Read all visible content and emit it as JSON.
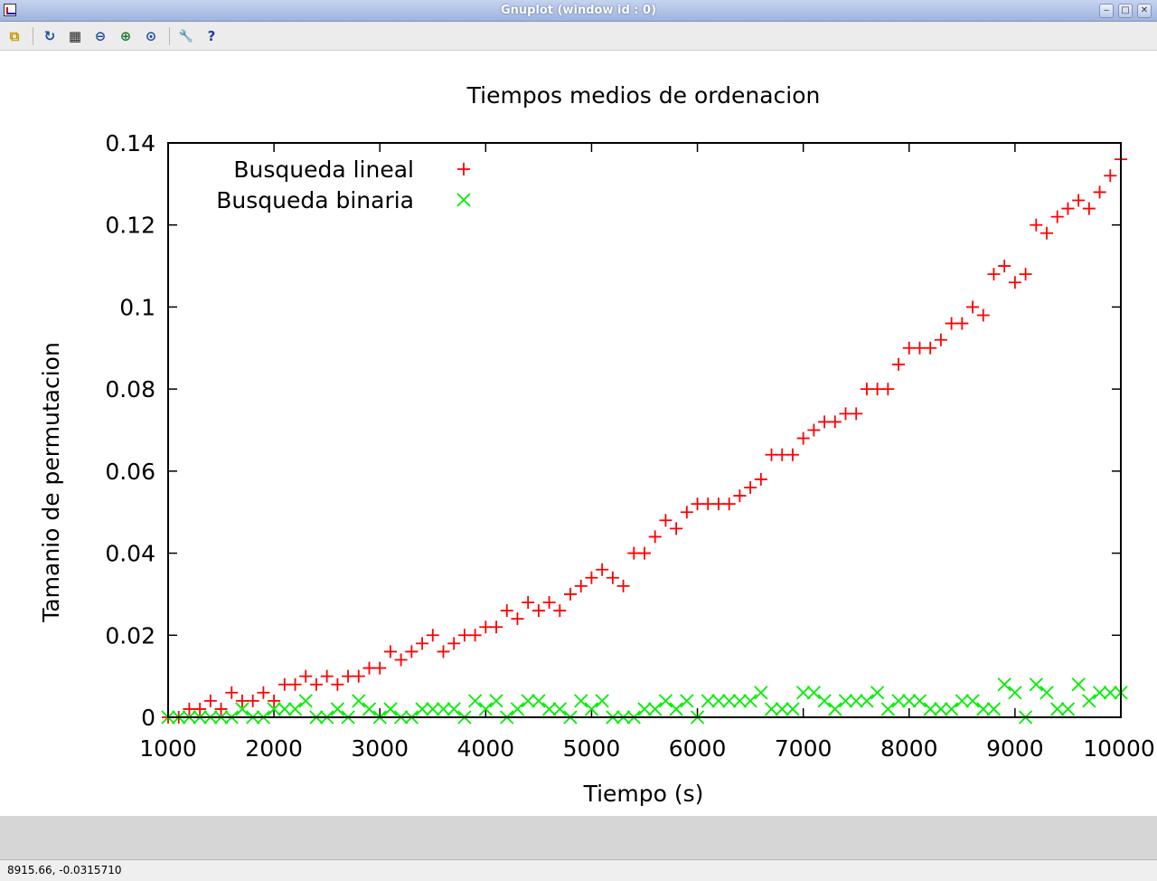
{
  "window": {
    "title": "Gnuplot (window id : 0)",
    "minimize": "‒",
    "maximize": "□",
    "close": "✕"
  },
  "toolbar": [
    {
      "name": "copy-to-clipboard-icon",
      "glyph": "⧉",
      "color": "#c79a00"
    },
    {
      "name": "replot-icon",
      "glyph": "↻",
      "color": "#1a4fa0"
    },
    {
      "name": "grid-icon",
      "glyph": "▦",
      "color": "#222222"
    },
    {
      "name": "zoom-previous-icon",
      "glyph": "⊖",
      "color": "#1a4fa0"
    },
    {
      "name": "zoom-next-icon",
      "glyph": "⊕",
      "color": "#1a7a30"
    },
    {
      "name": "autoscale-icon",
      "glyph": "⊙",
      "color": "#1a4fa0"
    },
    {
      "name": "options-icon",
      "glyph": "🔧",
      "color": "#b08000"
    },
    {
      "name": "help-icon",
      "glyph": "?",
      "color": "#1a3fa0"
    }
  ],
  "status": {
    "text": "8915.66, -0.0315710"
  },
  "chart_data": {
    "type": "scatter",
    "title": "Tiempos medios de ordenacion",
    "xlabel": "Tiempo (s)",
    "ylabel": "Tamanio de permutacion",
    "xlim": [
      1000,
      10000
    ],
    "ylim": [
      0,
      0.14
    ],
    "xticks": [
      1000,
      2000,
      3000,
      4000,
      5000,
      6000,
      7000,
      8000,
      9000,
      10000
    ],
    "xtick_labels": [
      "1000",
      "2000",
      "3000",
      "4000",
      "5000",
      "6000",
      "7000",
      "8000",
      "9000",
      "10000"
    ],
    "yticks": [
      0,
      0.02,
      0.04,
      0.06,
      0.08,
      0.1,
      0.12,
      0.14
    ],
    "ytick_labels": [
      "0",
      "0.02",
      "0.04",
      "0.06",
      "0.08",
      "0.1",
      "0.12",
      "0.14"
    ],
    "grid": false,
    "legend": "top-left",
    "x": [
      1000,
      1100,
      1200,
      1300,
      1400,
      1500,
      1600,
      1700,
      1800,
      1900,
      2000,
      2100,
      2200,
      2300,
      2400,
      2500,
      2600,
      2700,
      2800,
      2900,
      3000,
      3100,
      3200,
      3300,
      3400,
      3500,
      3600,
      3700,
      3800,
      3900,
      4000,
      4100,
      4200,
      4300,
      4400,
      4500,
      4600,
      4700,
      4800,
      4900,
      5000,
      5100,
      5200,
      5300,
      5400,
      5500,
      5600,
      5700,
      5800,
      5900,
      6000,
      6100,
      6200,
      6300,
      6400,
      6500,
      6600,
      6700,
      6800,
      6900,
      7000,
      7100,
      7200,
      7300,
      7400,
      7500,
      7600,
      7700,
      7800,
      7900,
      8000,
      8100,
      8200,
      8300,
      8400,
      8500,
      8600,
      8700,
      8800,
      8900,
      9000,
      9100,
      9200,
      9300,
      9400,
      9500,
      9600,
      9700,
      9800,
      9900,
      10000
    ],
    "series": [
      {
        "name": "Busqueda lineal",
        "marker": "+",
        "color": "#ff0000",
        "values": [
          0,
          0,
          0.002,
          0.002,
          0.004,
          0.002,
          0.006,
          0.004,
          0.004,
          0.006,
          0.004,
          0.008,
          0.008,
          0.01,
          0.008,
          0.01,
          0.008,
          0.01,
          0.01,
          0.012,
          0.012,
          0.016,
          0.014,
          0.016,
          0.018,
          0.02,
          0.016,
          0.018,
          0.02,
          0.02,
          0.022,
          0.022,
          0.026,
          0.024,
          0.028,
          0.026,
          0.028,
          0.026,
          0.03,
          0.032,
          0.034,
          0.036,
          0.034,
          0.032,
          0.04,
          0.04,
          0.044,
          0.048,
          0.046,
          0.05,
          0.052,
          0.052,
          0.052,
          0.052,
          0.054,
          0.056,
          0.058,
          0.064,
          0.064,
          0.064,
          0.068,
          0.07,
          0.072,
          0.072,
          0.074,
          0.074,
          0.08,
          0.08,
          0.08,
          0.086,
          0.09,
          0.09,
          0.09,
          0.092,
          0.096,
          0.096,
          0.1,
          0.098,
          0.108,
          0.11,
          0.106,
          0.108,
          0.12,
          0.118,
          0.122,
          0.124,
          0.126,
          0.124,
          0.128,
          0.132,
          0.136
        ]
      },
      {
        "name": "Busqueda binaria",
        "marker": "x",
        "color": "#00ee00",
        "values": [
          0,
          0,
          0,
          0,
          0,
          0,
          0,
          0.002,
          0,
          0,
          0.002,
          0.002,
          0.002,
          0.004,
          0,
          0,
          0.002,
          0,
          0.004,
          0.002,
          0,
          0.002,
          0,
          0,
          0.002,
          0.002,
          0.002,
          0.002,
          0,
          0.004,
          0.002,
          0.004,
          0,
          0.002,
          0.004,
          0.004,
          0.002,
          0.002,
          0,
          0.004,
          0.002,
          0.004,
          0,
          0,
          0,
          0.002,
          0.002,
          0.004,
          0.002,
          0.004,
          0,
          0.004,
          0.004,
          0.004,
          0.004,
          0.004,
          0.006,
          0.002,
          0.002,
          0.002,
          0.006,
          0.006,
          0.004,
          0.002,
          0.004,
          0.004,
          0.004,
          0.006,
          0.002,
          0.004,
          0.004,
          0.004,
          0.002,
          0.002,
          0.002,
          0.004,
          0.004,
          0.002,
          0.002,
          0.008,
          0.006,
          0,
          0.008,
          0.006,
          0.002,
          0.002,
          0.008,
          0.004,
          0.006,
          0.006,
          0.006
        ]
      }
    ]
  }
}
